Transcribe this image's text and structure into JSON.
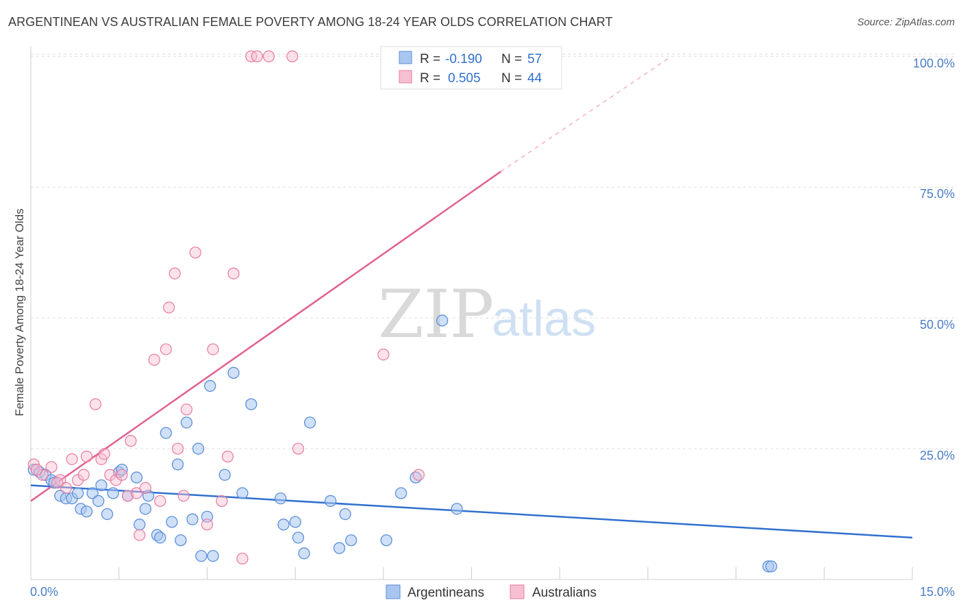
{
  "title": "ARGENTINEAN VS AUSTRALIAN FEMALE POVERTY AMONG 18-24 YEAR OLDS CORRELATION CHART",
  "source": "Source: ZipAtlas.com",
  "watermark": {
    "zip": "ZIP",
    "atlas": "atlas"
  },
  "legend": {
    "r_label": "R =",
    "n_label": "N =",
    "rows": [
      {
        "r": "-0.190",
        "n": "57"
      },
      {
        "r": "0.505",
        "n": "44"
      }
    ]
  },
  "bottom_legend": [
    "Argentineans",
    "Australians"
  ],
  "colors": {
    "argentineans_fill": "#a9c6f0",
    "argentineans_stroke": "#5b8fd9",
    "argentineans_line": "#2f6fcf",
    "australians_fill": "#f7bfd2",
    "australians_stroke": "#e8799f",
    "australians_line": "#e0608f",
    "tick_label": "#4a7cc7",
    "grid": "#dddddd"
  },
  "chart_data": {
    "type": "scatter",
    "title": "ARGENTINEAN VS AUSTRALIAN FEMALE POVERTY AMONG 18-24 YEAR OLDS CORRELATION CHART",
    "xlabel": "",
    "ylabel": "Female Poverty Among 18-24 Year Olds",
    "xlim": [
      0,
      15
    ],
    "ylim": [
      0,
      102
    ],
    "x_tick_labels": [
      "0.0%",
      "15.0%"
    ],
    "y_ticks": [
      25,
      50,
      75,
      100
    ],
    "y_tick_labels": [
      "25.0%",
      "50.0%",
      "75.0%",
      "100.0%"
    ],
    "grid": true,
    "legend_position": "top-center",
    "series": [
      {
        "name": "Argentineans",
        "r": -0.19,
        "n": 57,
        "trend": {
          "x0": 0.0,
          "y0": 18.0,
          "x1": 15.0,
          "y1": 8.0
        },
        "points": [
          [
            0.05,
            21.0
          ],
          [
            0.15,
            20.5
          ],
          [
            0.25,
            20.0
          ],
          [
            0.35,
            19.0
          ],
          [
            0.4,
            18.5
          ],
          [
            0.5,
            16.0
          ],
          [
            0.6,
            15.5
          ],
          [
            0.7,
            15.5
          ],
          [
            0.8,
            16.5
          ],
          [
            0.85,
            13.5
          ],
          [
            0.95,
            13.0
          ],
          [
            1.05,
            16.5
          ],
          [
            1.15,
            15.0
          ],
          [
            1.2,
            18.0
          ],
          [
            1.3,
            12.5
          ],
          [
            1.4,
            16.5
          ],
          [
            1.5,
            20.5
          ],
          [
            1.55,
            21.0
          ],
          [
            1.65,
            16.0
          ],
          [
            1.8,
            19.5
          ],
          [
            1.85,
            10.5
          ],
          [
            1.95,
            13.5
          ],
          [
            2.0,
            16.0
          ],
          [
            2.15,
            8.5
          ],
          [
            2.2,
            8.0
          ],
          [
            2.3,
            28.0
          ],
          [
            2.4,
            11.0
          ],
          [
            2.5,
            22.0
          ],
          [
            2.55,
            7.5
          ],
          [
            2.65,
            30.0
          ],
          [
            2.75,
            11.5
          ],
          [
            2.85,
            25.0
          ],
          [
            2.9,
            4.5
          ],
          [
            3.0,
            12.0
          ],
          [
            3.05,
            37.0
          ],
          [
            3.1,
            4.5
          ],
          [
            3.3,
            20.0
          ],
          [
            3.45,
            39.5
          ],
          [
            3.6,
            16.5
          ],
          [
            3.75,
            33.5
          ],
          [
            4.25,
            15.5
          ],
          [
            4.3,
            10.5
          ],
          [
            4.5,
            11.0
          ],
          [
            4.55,
            8.0
          ],
          [
            4.65,
            5.0
          ],
          [
            4.75,
            30.0
          ],
          [
            5.1,
            15.0
          ],
          [
            5.25,
            6.0
          ],
          [
            5.35,
            12.5
          ],
          [
            5.45,
            7.5
          ],
          [
            6.05,
            7.5
          ],
          [
            6.3,
            16.5
          ],
          [
            6.55,
            19.5
          ],
          [
            7.0,
            49.5
          ],
          [
            7.25,
            13.5
          ],
          [
            12.55,
            2.5
          ],
          [
            12.6,
            2.5
          ]
        ]
      },
      {
        "name": "Australians",
        "r": 0.505,
        "n": 44,
        "trend": {
          "x0": 0.0,
          "y0": 15.0,
          "x1": 8.0,
          "y1": 78.0,
          "dash_to_x": 10.9,
          "dash_to_y": 100.0
        },
        "points": [
          [
            0.05,
            22.0
          ],
          [
            0.2,
            20.0
          ],
          [
            0.35,
            21.5
          ],
          [
            0.5,
            19.0
          ],
          [
            0.6,
            17.5
          ],
          [
            0.7,
            23.0
          ],
          [
            0.8,
            19.0
          ],
          [
            0.9,
            20.0
          ],
          [
            0.95,
            23.5
          ],
          [
            1.1,
            33.5
          ],
          [
            1.2,
            23.0
          ],
          [
            1.25,
            24.0
          ],
          [
            1.35,
            20.0
          ],
          [
            1.45,
            19.0
          ],
          [
            1.55,
            20.0
          ],
          [
            1.65,
            16.0
          ],
          [
            1.7,
            26.5
          ],
          [
            1.8,
            16.5
          ],
          [
            1.85,
            8.5
          ],
          [
            1.95,
            17.5
          ],
          [
            2.1,
            42.0
          ],
          [
            2.2,
            15.0
          ],
          [
            2.3,
            44.0
          ],
          [
            2.35,
            52.0
          ],
          [
            2.45,
            58.5
          ],
          [
            2.5,
            25.0
          ],
          [
            2.6,
            16.0
          ],
          [
            2.65,
            32.5
          ],
          [
            2.8,
            62.5
          ],
          [
            3.0,
            10.5
          ],
          [
            3.1,
            44.0
          ],
          [
            3.25,
            15.0
          ],
          [
            3.35,
            23.5
          ],
          [
            3.45,
            58.5
          ],
          [
            3.6,
            4.0
          ],
          [
            3.75,
            100.0
          ],
          [
            3.85,
            100.0
          ],
          [
            4.05,
            100.0
          ],
          [
            4.45,
            100.0
          ],
          [
            4.55,
            25.0
          ],
          [
            6.0,
            43.0
          ],
          [
            6.6,
            20.0
          ],
          [
            0.1,
            21.0
          ],
          [
            0.45,
            18.5
          ]
        ]
      }
    ]
  }
}
